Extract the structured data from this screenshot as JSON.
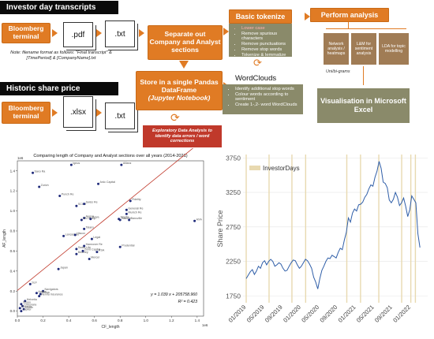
{
  "pipeline": {
    "transcripts_header": "Investor day transcripts",
    "price_header": "Historic share price",
    "bloomberg_label_1": "Bloomberg terminal",
    "bloomberg_label_2": "Bloomberg terminal",
    "pdf_label": ".pdf",
    "txt_label_1": ".txt",
    "xlsx_label": ".xlsx",
    "txt_label_2": ".txt",
    "note_text": "Note: filename format as follows: \"Final transcript\" & [TimePeriod] & [CompanyName].txt",
    "separate_box": "Separate out Company and Analyst sections",
    "store_box_line1": "Store in a single Pandas DataFrame",
    "store_box_line2": "(Jupyter Notebook)",
    "eda_box": "Exploratory Data Analysis to identify data errors / word corrections",
    "tokenize_title": "Basic tokenize",
    "tokenize_items": [
      "Lower case",
      "Remove spurious characters",
      "Remove punctuations",
      "Remove stop words",
      "Tokenize & lemmatize"
    ],
    "wordclouds_title": "WordClouds",
    "wordclouds_items": [
      "Identify additional stop words",
      "Colour words according to sentiment",
      "Create 1-,2- word WordClouds"
    ],
    "analysis_title": "Perform analysis",
    "analysis_boxes": [
      "Network analysis / heatmaps",
      "L&M for sentiment analysis",
      "LDA for topic modelling"
    ],
    "bigram_label": "Uni/bi-grams",
    "visualisation_box": "Visualisation in Microsoft Excel"
  },
  "scatter_chart": {
    "chart_data": {
      "type": "scatter",
      "title": "Comparing length of Company and Analyst sections over all years (2014-2021)",
      "xlabel": "CF_length",
      "ylabel": "AF_length",
      "x_scale_label": "1e6",
      "y_scale_label": "1e6",
      "xlim": [
        0,
        1.45
      ],
      "ylim": [
        -0.05,
        1.5
      ],
      "xticks": [
        0.0,
        0.2,
        0.4,
        0.6,
        0.8,
        1.0,
        1.2,
        1.4
      ],
      "yticks": [
        0.0,
        0.2,
        0.4,
        0.6,
        0.8,
        1.0,
        1.2,
        1.4
      ],
      "points": [
        {
          "label": "Saxo Ra",
          "x": 0.12,
          "y": 1.38
        },
        {
          "label": "Ignus",
          "x": 0.42,
          "y": 1.46
        },
        {
          "label": "Allianz",
          "x": 0.81,
          "y": 1.46
        },
        {
          "label": "Zurich",
          "x": 0.17,
          "y": 1.24
        },
        {
          "label": "Punch Re",
          "x": 0.33,
          "y": 1.15
        },
        {
          "label": "Ardc Capital",
          "x": 0.63,
          "y": 1.27
        },
        {
          "label": "Fidelity",
          "x": 0.88,
          "y": 1.1
        },
        {
          "label": "SCOR",
          "x": 0.46,
          "y": 1.05
        },
        {
          "label": "Swiss Re",
          "x": 0.52,
          "y": 1.07
        },
        {
          "label": "Generali Re",
          "x": 0.85,
          "y": 1.01
        },
        {
          "label": "Munich Re",
          "x": 0.85,
          "y": 0.97
        },
        {
          "label": "Aegon",
          "x": 0.52,
          "y": 0.93
        },
        {
          "label": "NN Group",
          "x": 0.5,
          "y": 0.91
        },
        {
          "label": "Aviva",
          "x": 0.57,
          "y": 0.92
        },
        {
          "label": "Mapfre",
          "x": 0.79,
          "y": 0.92
        },
        {
          "label": "Baloise",
          "x": 0.8,
          "y": 0.91
        },
        {
          "label": "Bancville",
          "x": 0.87,
          "y": 0.91
        },
        {
          "label": "AXA",
          "x": 1.38,
          "y": 0.9
        },
        {
          "label": "Talanx",
          "x": 0.52,
          "y": 0.82
        },
        {
          "label": "Lancashire",
          "x": 0.36,
          "y": 0.75
        },
        {
          "label": "Hiscox",
          "x": 0.45,
          "y": 0.76
        },
        {
          "label": "Hannover Re",
          "x": 0.52,
          "y": 0.65
        },
        {
          "label": "Legal",
          "x": 0.58,
          "y": 0.72
        },
        {
          "label": "Swiss Life",
          "x": 0.46,
          "y": 0.62
        },
        {
          "label": "Beazley",
          "x": 0.46,
          "y": 0.57
        },
        {
          "label": "Zenit Capital",
          "x": 0.51,
          "y": 0.6
        },
        {
          "label": "RSA",
          "x": 0.62,
          "y": 0.59
        },
        {
          "label": "Prudential",
          "x": 0.8,
          "y": 0.64
        },
        {
          "label": "Mercer",
          "x": 0.56,
          "y": 0.52
        },
        {
          "label": "Japan",
          "x": 0.32,
          "y": 0.42
        },
        {
          "label": "SLF",
          "x": 0.1,
          "y": 0.27
        },
        {
          "label": "Navigators",
          "x": 0.2,
          "y": 0.2
        },
        {
          "label": "Ageas",
          "x": 0.15,
          "y": 0.18
        },
        {
          "label": "Uniqa",
          "x": 0.18,
          "y": 0.17
        },
        {
          "label": "Vienna Insurance",
          "x": 0.17,
          "y": 0.15
        },
        {
          "label": "Helvetia",
          "x": 0.06,
          "y": 0.1
        },
        {
          "label": "Grupo",
          "x": 0.03,
          "y": 0.07
        },
        {
          "label": "Chesnara",
          "x": 0.04,
          "y": 0.05
        },
        {
          "label": "Phoenix",
          "x": 0.02,
          "y": 0.03
        },
        {
          "label": "Unum",
          "x": 0.05,
          "y": 0.02
        },
        {
          "label": "Jupiter",
          "x": 0.03,
          "y": 0.0
        }
      ],
      "trendline": {
        "slope": 1.039,
        "intercept": 205758.96
      },
      "annotation_eq": "y = 1.039 x + 205758.960",
      "annotation_r2": "R² = 0.423",
      "colors": {
        "points": "#1f2a7a",
        "trend": "#c0392b"
      }
    }
  },
  "price_chart": {
    "chart_data": {
      "type": "line",
      "legend": "InvestorDays",
      "ylabel": "Share Price",
      "ylim": [
        1650,
        3800
      ],
      "yticks": [
        1750,
        2250,
        2750,
        3250,
        3750
      ],
      "x_ticks": [
        "01/2019",
        "05/2019",
        "09/2019",
        "01/2020",
        "05/2020",
        "09/2020",
        "01/2021",
        "05/2021",
        "09/2021",
        "01/2022"
      ],
      "investor_days": [
        "2019-01",
        "2019-06",
        "2019-11",
        "2020-02",
        "2020-11",
        "2021-02",
        "2021-06",
        "2021-11",
        "2022-01",
        "2022-02"
      ],
      "series": [
        {
          "values": [
            2000,
            2050,
            2100,
            2130,
            2060,
            2110,
            2180,
            2150,
            2230,
            2260,
            2200,
            2250,
            2280,
            2250,
            2180,
            2200,
            2230,
            2210,
            2150,
            2110,
            2120,
            2180,
            2230,
            2270,
            2260,
            2200,
            2150,
            2180,
            2230,
            2280,
            2260,
            2210,
            2150,
            2020,
            1950,
            1850,
            2000,
            2120,
            2180,
            2250,
            2300,
            2290,
            2340,
            2320,
            2300,
            2380,
            2440,
            2420,
            2560,
            2670,
            2880,
            2820,
            2950,
            3010,
            2980,
            3070,
            3080,
            3110,
            3180,
            3220,
            3300,
            3360,
            3340,
            3470,
            3560,
            3700,
            3600,
            3400,
            3380,
            3320,
            3140,
            3100,
            3150,
            3250,
            3180,
            3060,
            3100,
            3170,
            3050,
            2900,
            3000,
            3200,
            3150,
            3100,
            2650,
            2450
          ]
        }
      ],
      "colors": {
        "line": "#2f5ea8",
        "investor_days": "#e8d9b0"
      }
    }
  }
}
